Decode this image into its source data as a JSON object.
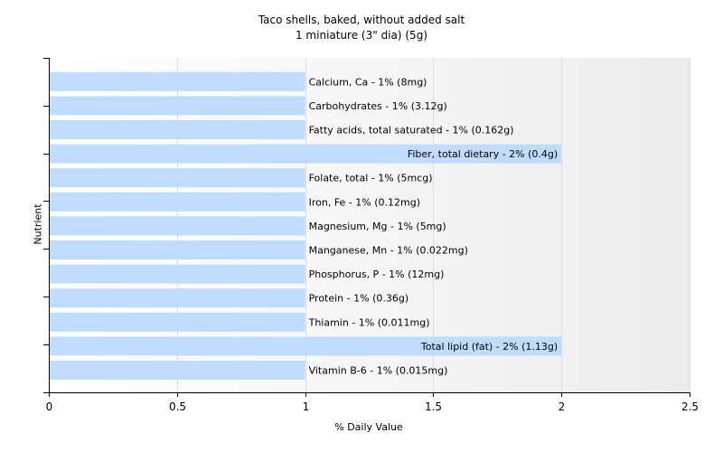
{
  "chart_data": {
    "type": "bar",
    "orientation": "horizontal",
    "title": "Taco shells, baked, without added salt",
    "subtitle": "1 miniature (3\" dia) (5g)",
    "xlabel": "% Daily Value",
    "ylabel": "Nutrient",
    "xlim": [
      0,
      2.5
    ],
    "xticks": [
      "0",
      "0.5",
      "1",
      "1.5",
      "2",
      "2.5"
    ],
    "grid": true,
    "bar_color": "#bfdcff",
    "categories": [
      "Calcium, Ca",
      "Carbohydrates",
      "Fatty acids, total saturated",
      "Fiber, total dietary",
      "Folate, total",
      "Iron, Fe",
      "Magnesium, Mg",
      "Manganese, Mn",
      "Phosphorus, P",
      "Protein",
      "Thiamin",
      "Total lipid (fat)",
      "Vitamin B-6"
    ],
    "values": [
      1,
      1,
      1,
      2,
      1,
      1,
      1,
      1,
      1,
      1,
      1,
      2,
      1
    ],
    "labels": [
      "Calcium, Ca - 1% (8mg)",
      "Carbohydrates - 1% (3.12g)",
      "Fatty acids, total saturated - 1% (0.162g)",
      "Fiber, total dietary - 2% (0.4g)",
      "Folate, total - 1% (5mcg)",
      "Iron, Fe - 1% (0.12mg)",
      "Magnesium, Mg - 1% (5mg)",
      "Manganese, Mn - 1% (0.022mg)",
      "Phosphorus, P - 1% (12mg)",
      "Protein - 1% (0.36g)",
      "Thiamin - 1% (0.011mg)",
      "Total lipid (fat) - 2% (1.13g)",
      "Vitamin B-6 - 1% (0.015mg)"
    ]
  }
}
